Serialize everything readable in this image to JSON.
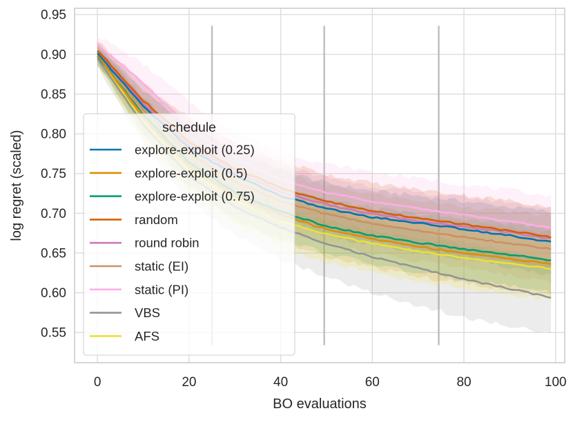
{
  "chart_data": {
    "type": "line",
    "title": "",
    "xlabel": "BO evaluations",
    "ylabel": "log regret (scaled)",
    "xlim": [
      -5,
      102
    ],
    "ylim": [
      0.512,
      0.958
    ],
    "xticks": [
      0,
      20,
      40,
      60,
      80,
      100
    ],
    "yticks": [
      0.55,
      0.6,
      0.65,
      0.7,
      0.75,
      0.8,
      0.85,
      0.9,
      0.95
    ],
    "xtick_labels": [
      "0",
      "20",
      "40",
      "60",
      "80",
      "100"
    ],
    "ytick_labels": [
      "0.55",
      "0.60",
      "0.65",
      "0.70",
      "0.75",
      "0.80",
      "0.85",
      "0.90",
      "0.95"
    ],
    "grid": true,
    "legend": {
      "title": "schedule",
      "placement": "center-left"
    },
    "vertical_markers": [
      {
        "x": 25,
        "y_range": [
          0.534,
          0.936
        ],
        "color": "#bdbdbd"
      },
      {
        "x": 49.5,
        "y_range": [
          0.534,
          0.936
        ],
        "color": "#bdbdbd"
      },
      {
        "x": 74.5,
        "y_range": [
          0.534,
          0.936
        ],
        "color": "#bdbdbd"
      }
    ],
    "x": [
      0,
      10,
      20,
      30,
      40,
      50,
      60,
      70,
      80,
      90,
      99
    ],
    "series": [
      {
        "name": "explore-exploit (0.25)",
        "color": "#0173b2",
        "values": [
          0.901,
          0.835,
          0.782,
          0.748,
          0.722,
          0.706,
          0.695,
          0.688,
          0.68,
          0.672,
          0.664
        ],
        "lower": [
          0.89,
          0.815,
          0.752,
          0.715,
          0.69,
          0.672,
          0.66,
          0.651,
          0.642,
          0.632,
          0.622
        ],
        "upper": [
          0.912,
          0.855,
          0.81,
          0.78,
          0.755,
          0.738,
          0.728,
          0.722,
          0.715,
          0.708,
          0.702
        ]
      },
      {
        "name": "explore-exploit (0.5)",
        "color": "#de8f05",
        "values": [
          0.899,
          0.822,
          0.76,
          0.722,
          0.698,
          0.68,
          0.668,
          0.658,
          0.65,
          0.643,
          0.636
        ],
        "lower": [
          0.888,
          0.8,
          0.732,
          0.69,
          0.664,
          0.645,
          0.632,
          0.62,
          0.612,
          0.604,
          0.597
        ],
        "upper": [
          0.911,
          0.845,
          0.79,
          0.754,
          0.73,
          0.713,
          0.702,
          0.694,
          0.688,
          0.682,
          0.675
        ]
      },
      {
        "name": "explore-exploit (0.75)",
        "color": "#029e73",
        "values": [
          0.898,
          0.824,
          0.764,
          0.726,
          0.702,
          0.684,
          0.672,
          0.663,
          0.655,
          0.648,
          0.641
        ],
        "lower": [
          0.887,
          0.802,
          0.735,
          0.693,
          0.668,
          0.65,
          0.636,
          0.625,
          0.617,
          0.609,
          0.601
        ],
        "upper": [
          0.91,
          0.846,
          0.792,
          0.758,
          0.735,
          0.718,
          0.707,
          0.699,
          0.693,
          0.687,
          0.681
        ]
      },
      {
        "name": "random",
        "color": "#d55e00",
        "values": [
          0.905,
          0.842,
          0.79,
          0.756,
          0.732,
          0.715,
          0.703,
          0.694,
          0.686,
          0.678,
          0.67
        ],
        "lower": [
          0.893,
          0.82,
          0.76,
          0.722,
          0.698,
          0.681,
          0.668,
          0.658,
          0.648,
          0.64,
          0.63
        ],
        "upper": [
          0.917,
          0.864,
          0.82,
          0.79,
          0.766,
          0.749,
          0.738,
          0.73,
          0.723,
          0.716,
          0.708
        ]
      },
      {
        "name": "round robin",
        "color": "#cc78bc",
        "values": [
          0.904,
          0.838,
          0.786,
          0.752,
          0.727,
          0.711,
          0.699,
          0.69,
          0.683,
          0.676,
          0.668
        ],
        "lower": [
          0.892,
          0.816,
          0.756,
          0.718,
          0.693,
          0.677,
          0.664,
          0.654,
          0.646,
          0.638,
          0.628
        ],
        "upper": [
          0.916,
          0.86,
          0.816,
          0.786,
          0.761,
          0.745,
          0.734,
          0.726,
          0.72,
          0.714,
          0.706
        ]
      },
      {
        "name": "static (EI)",
        "color": "#ca9161",
        "values": [
          0.902,
          0.831,
          0.775,
          0.74,
          0.715,
          0.699,
          0.687,
          0.678,
          0.67,
          0.662,
          0.655
        ],
        "lower": [
          0.89,
          0.808,
          0.744,
          0.706,
          0.68,
          0.663,
          0.65,
          0.64,
          0.631,
          0.622,
          0.613
        ],
        "upper": [
          0.914,
          0.854,
          0.806,
          0.774,
          0.75,
          0.735,
          0.724,
          0.716,
          0.709,
          0.702,
          0.697
        ]
      },
      {
        "name": "static (PI)",
        "color": "#fbafe4",
        "values": [
          0.912,
          0.864,
          0.808,
          0.77,
          0.742,
          0.726,
          0.715,
          0.706,
          0.698,
          0.69,
          0.682
        ],
        "lower": [
          0.9,
          0.84,
          0.776,
          0.736,
          0.707,
          0.69,
          0.678,
          0.668,
          0.66,
          0.651,
          0.642
        ],
        "upper": [
          0.924,
          0.888,
          0.84,
          0.804,
          0.777,
          0.762,
          0.752,
          0.744,
          0.736,
          0.729,
          0.722
        ]
      },
      {
        "name": "VBS",
        "color": "#949494",
        "values": [
          0.895,
          0.812,
          0.747,
          0.708,
          0.682,
          0.662,
          0.645,
          0.631,
          0.617,
          0.605,
          0.594
        ],
        "lower": [
          0.884,
          0.788,
          0.716,
          0.672,
          0.642,
          0.62,
          0.6,
          0.584,
          0.569,
          0.558,
          0.55
        ],
        "upper": [
          0.906,
          0.836,
          0.778,
          0.744,
          0.722,
          0.704,
          0.69,
          0.678,
          0.665,
          0.652,
          0.638
        ]
      },
      {
        "name": "AFS",
        "color": "#ece133",
        "values": [
          0.897,
          0.815,
          0.753,
          0.716,
          0.69,
          0.674,
          0.662,
          0.652,
          0.644,
          0.637,
          0.63
        ],
        "lower": [
          0.886,
          0.792,
          0.722,
          0.682,
          0.655,
          0.638,
          0.625,
          0.614,
          0.606,
          0.598,
          0.59
        ],
        "upper": [
          0.908,
          0.838,
          0.784,
          0.75,
          0.725,
          0.71,
          0.699,
          0.69,
          0.682,
          0.676,
          0.67
        ]
      }
    ]
  }
}
